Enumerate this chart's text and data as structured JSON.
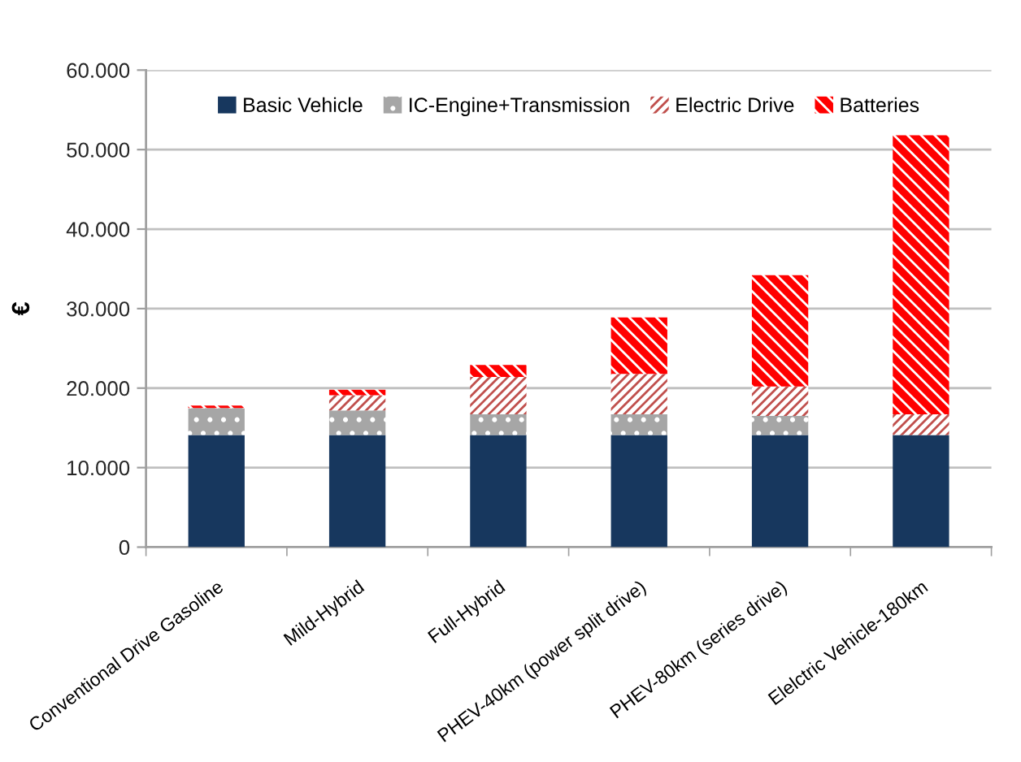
{
  "chart_data": {
    "type": "bar",
    "stacked": true,
    "ylabel": "€",
    "categories": [
      "Conventional Drive Gasoline",
      "Mild-Hybrid",
      "Full-Hybrid",
      "PHEV-40km (power split drive)",
      "PHEV-80km (series drive)",
      "Elelctric Vehicle-180km"
    ],
    "series": [
      {
        "name": "Basic Vehicle",
        "color": "#17375e",
        "values": [
          14100,
          14100,
          14100,
          14100,
          14100,
          14100
        ]
      },
      {
        "name": "IC-Engine+Transmission",
        "color": "#a6a6a6",
        "values": [
          3400,
          3100,
          2600,
          2600,
          2400,
          null
        ]
      },
      {
        "name": "Electric Drive",
        "color": "#c0504d",
        "values": [
          null,
          1900,
          4700,
          5100,
          3700,
          2600
        ]
      },
      {
        "name": "Batteries",
        "color": "#ff0000",
        "values": [
          300,
          700,
          1500,
          7100,
          14000,
          35100
        ]
      }
    ],
    "ylim": [
      0,
      60000
    ],
    "yticks": [
      0,
      {
        "value": 10000,
        "label": "10.000"
      },
      {
        "value": 20000,
        "label": "20.000"
      },
      {
        "value": 30000,
        "label": "30.000"
      },
      {
        "value": 40000,
        "label": "40.000"
      },
      {
        "value": 50000,
        "label": "50.000"
      },
      {
        "value": 60000,
        "label": "60.000"
      }
    ],
    "grid": "y",
    "legend": "top"
  }
}
